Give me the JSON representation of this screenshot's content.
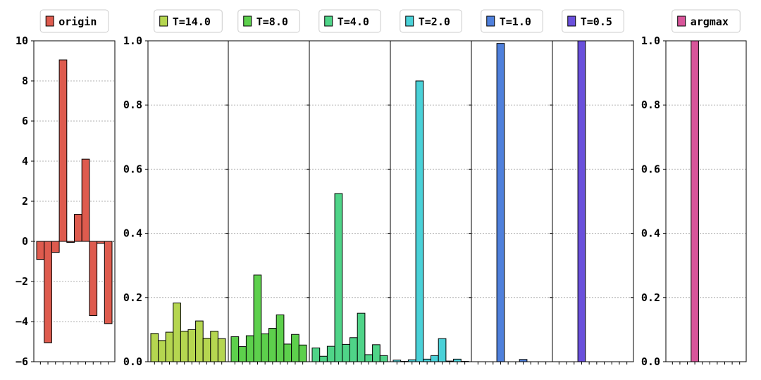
{
  "chart_data": [
    {
      "type": "bar",
      "legend": "origin",
      "color": "#de5b4e",
      "ylim": [
        -6,
        10
      ],
      "yticks": [
        -6,
        -4,
        -2,
        0,
        2,
        4,
        6,
        8,
        10
      ],
      "ytick_labels": [
        "−6",
        "−4",
        "−2",
        "0",
        "2",
        "4",
        "6",
        "8",
        "10"
      ],
      "values": [
        -0.9,
        -5.05,
        -0.55,
        9.05,
        -0.05,
        1.35,
        4.1,
        -3.7,
        -0.1,
        -4.1
      ],
      "grid": true
    },
    {
      "type": "bar",
      "legend": "T=14.0",
      "color": "#b5d650",
      "ylim": [
        0,
        1
      ],
      "yticks": [
        0,
        0.2,
        0.4,
        0.6,
        0.8,
        1.0
      ],
      "ytick_labels": [
        "0.0",
        "0.2",
        "0.4",
        "0.6",
        "0.8",
        "1.0"
      ],
      "values": [
        0.088,
        0.066,
        0.092,
        0.183,
        0.095,
        0.1,
        0.127,
        0.073,
        0.095,
        0.072
      ],
      "grid": true
    },
    {
      "type": "bar",
      "legend": "T=8.0",
      "color": "#5dd04c",
      "ylim": [
        0,
        1
      ],
      "values": [
        0.078,
        0.047,
        0.081,
        0.27,
        0.087,
        0.104,
        0.146,
        0.055,
        0.085,
        0.052
      ],
      "grid": true
    },
    {
      "type": "bar",
      "legend": "T=4.0",
      "color": "#4fd488",
      "ylim": [
        0,
        1
      ],
      "values": [
        0.043,
        0.017,
        0.048,
        0.524,
        0.054,
        0.075,
        0.151,
        0.022,
        0.053,
        0.019
      ],
      "grid": true
    },
    {
      "type": "bar",
      "legend": "T=2.0",
      "color": "#4ad1d8",
      "ylim": [
        0,
        1
      ],
      "values": [
        0.005,
        0.001,
        0.006,
        0.875,
        0.008,
        0.019,
        0.072,
        0.002,
        0.008,
        0.001
      ],
      "grid": true
    },
    {
      "type": "bar",
      "legend": "T=1.0",
      "color": "#4f80dc",
      "ylim": [
        0,
        1
      ],
      "values": [
        0.0,
        0.0,
        0.0,
        0.992,
        0.0,
        0.0,
        0.007,
        0.0,
        0.0,
        0.0
      ],
      "grid": true
    },
    {
      "type": "bar",
      "legend": "T=0.5",
      "color": "#6a50dc",
      "ylim": [
        0,
        1
      ],
      "values": [
        0.0,
        0.0,
        0.0,
        1.0,
        0.0,
        0.0,
        0.0,
        0.0,
        0.0,
        0.0
      ],
      "grid": true
    },
    {
      "type": "bar",
      "legend": "argmax",
      "color": "#d8559a",
      "ylim": [
        0,
        1
      ],
      "yticks": [
        0,
        0.2,
        0.4,
        0.6,
        0.8,
        1.0
      ],
      "ytick_labels": [
        "0.0",
        "0.2",
        "0.4",
        "0.6",
        "0.8",
        "1.0"
      ],
      "values": [
        0,
        0,
        0,
        1,
        0,
        0,
        0,
        0,
        0,
        0
      ],
      "grid": true
    }
  ]
}
